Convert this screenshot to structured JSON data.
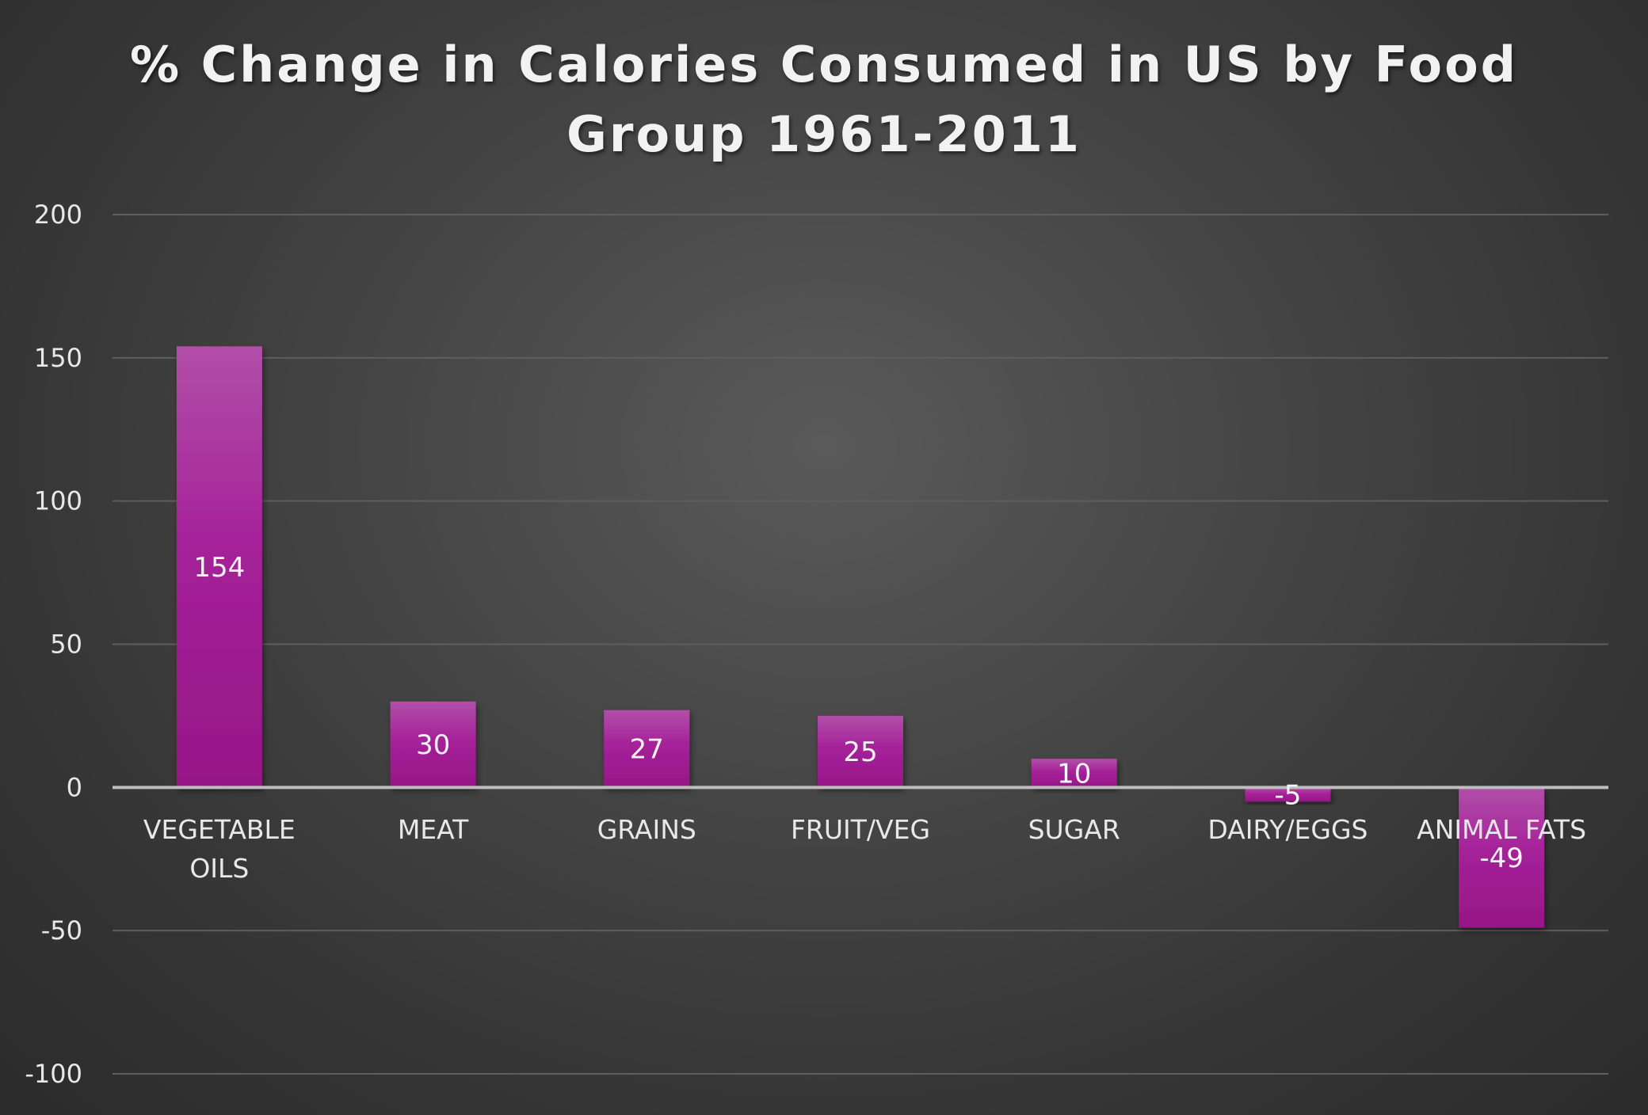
{
  "chart_data": {
    "type": "bar",
    "title": "% Change in Calories Consumed in US by Food Group 1961-2011",
    "categories": [
      [
        "VEGETABLE",
        "OILS"
      ],
      [
        "MEAT"
      ],
      [
        "GRAINS"
      ],
      [
        "FRUIT/VEG"
      ],
      [
        "SUGAR"
      ],
      [
        "DAIRY/EGGS"
      ],
      [
        "ANIMAL FATS"
      ]
    ],
    "values": [
      154,
      30,
      27,
      25,
      10,
      -5,
      -49
    ],
    "value_labels": [
      "154",
      "30",
      "27",
      "25",
      "10",
      "-5",
      "-49"
    ],
    "ylim": [
      -100,
      200
    ],
    "yticks": [
      200,
      150,
      100,
      50,
      0,
      -50,
      -100
    ],
    "ytick_labels": [
      "200",
      "150",
      "100",
      "50",
      "0",
      "-50",
      "-100"
    ],
    "grid": true,
    "legend": "none",
    "xlabel": "",
    "ylabel": "",
    "colors": {
      "bar_top": "#b14fa8",
      "bar_mid": "#a52199",
      "bar_bottom": "#961787",
      "gridline": "#5e5e5e",
      "zero_line": "#bdbdbd",
      "text": "#e8e8e8",
      "title": "#f2f2f2"
    }
  }
}
